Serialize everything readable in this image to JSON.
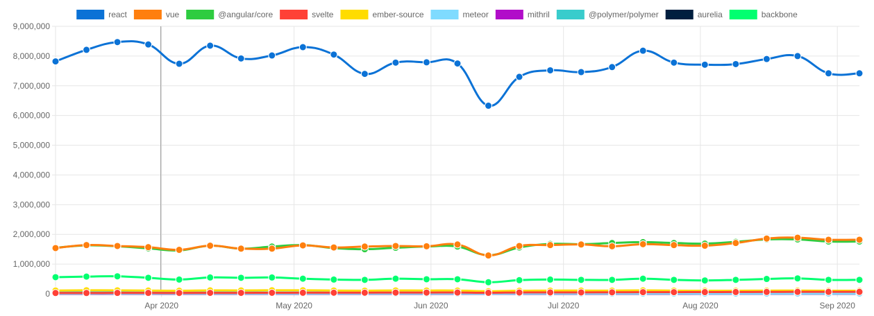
{
  "chart_data": {
    "type": "line",
    "title": "",
    "xlabel": "",
    "ylabel": "",
    "ylim": [
      0,
      9000000
    ],
    "y_ticks": [
      0,
      1000000,
      2000000,
      3000000,
      4000000,
      5000000,
      6000000,
      7000000,
      8000000,
      9000000
    ],
    "y_tick_labels": [
      "0",
      "1,000,000",
      "2,000,000",
      "3,000,000",
      "4,000,000",
      "5,000,000",
      "6,000,000",
      "7,000,000",
      "8,000,000",
      "9,000,000"
    ],
    "x": [
      "2020-03-08",
      "2020-03-15",
      "2020-03-22",
      "2020-03-29",
      "2020-04-05",
      "2020-04-12",
      "2020-04-19",
      "2020-04-26",
      "2020-05-03",
      "2020-05-10",
      "2020-05-17",
      "2020-05-24",
      "2020-05-31",
      "2020-06-07",
      "2020-06-14",
      "2020-06-21",
      "2020-06-28",
      "2020-07-05",
      "2020-07-12",
      "2020-07-19",
      "2020-07-26",
      "2020-08-02",
      "2020-08-09",
      "2020-08-16",
      "2020-08-23",
      "2020-08-30",
      "2020-09-06"
    ],
    "x_ticks": [
      {
        "label": "Apr 2020",
        "date": "2020-04-01"
      },
      {
        "label": "May 2020",
        "date": "2020-05-01"
      },
      {
        "label": "Jun 2020",
        "date": "2020-06-01"
      },
      {
        "label": "Jul 2020",
        "date": "2020-07-01"
      },
      {
        "label": "Aug 2020",
        "date": "2020-08-01"
      },
      {
        "label": "Sep 2020",
        "date": "2020-09-01"
      }
    ],
    "grid": true,
    "legend_position": "top",
    "series": [
      {
        "name": "react",
        "color": "#0b72d6",
        "values": [
          7820000,
          8210000,
          8470000,
          8390000,
          7740000,
          8350000,
          7920000,
          8020000,
          8300000,
          8050000,
          7400000,
          7780000,
          7790000,
          7750000,
          6330000,
          7300000,
          7520000,
          7460000,
          7630000,
          8180000,
          7780000,
          7710000,
          7730000,
          7900000,
          8000000,
          7420000,
          7420000
        ]
      },
      {
        "name": "vue",
        "color": "#ff7f0e",
        "values": [
          1540000,
          1640000,
          1610000,
          1570000,
          1480000,
          1620000,
          1520000,
          1520000,
          1630000,
          1560000,
          1590000,
          1610000,
          1600000,
          1660000,
          1290000,
          1610000,
          1640000,
          1660000,
          1600000,
          1670000,
          1640000,
          1620000,
          1710000,
          1860000,
          1890000,
          1820000,
          1820000
        ]
      },
      {
        "name": "@angular/core",
        "color": "#2ecc40",
        "values": [
          1550000,
          1630000,
          1600000,
          1530000,
          1460000,
          1620000,
          1520000,
          1590000,
          1640000,
          1540000,
          1500000,
          1550000,
          1590000,
          1590000,
          1300000,
          1560000,
          1680000,
          1670000,
          1710000,
          1740000,
          1710000,
          1690000,
          1750000,
          1830000,
          1830000,
          1760000,
          1760000
        ]
      },
      {
        "name": "svelte",
        "color": "#ff4136",
        "values": [
          28000,
          29000,
          31000,
          31000,
          30000,
          33000,
          33000,
          35000,
          37000,
          38000,
          38000,
          41000,
          42000,
          43000,
          34000,
          45000,
          48000,
          48000,
          50000,
          56000,
          56000,
          58000,
          60000,
          63000,
          66000,
          66000,
          66000
        ]
      },
      {
        "name": "ember-source",
        "color": "#ffdc00",
        "values": [
          112000,
          120000,
          118000,
          110000,
          104000,
          116000,
          115000,
          120000,
          119000,
          112000,
          106000,
          114000,
          112000,
          110000,
          88000,
          104000,
          108000,
          110000,
          108000,
          116000,
          108000,
          104000,
          106000,
          108000,
          110000,
          106000,
          106000
        ]
      },
      {
        "name": "meteor",
        "color": "#7fdbff",
        "values": [
          12000,
          13000,
          13000,
          12000,
          11000,
          12000,
          12000,
          12000,
          12000,
          12000,
          11000,
          11000,
          11000,
          11000,
          9000,
          11000,
          11000,
          11000,
          11000,
          11000,
          11000,
          10000,
          10000,
          10000,
          10000,
          10000,
          10000
        ]
      },
      {
        "name": "mithril",
        "color": "#b10dc9",
        "values": [
          7000,
          7000,
          7000,
          7000,
          6000,
          7000,
          7000,
          7000,
          7000,
          7000,
          6000,
          7000,
          7000,
          7000,
          5000,
          6000,
          7000,
          7000,
          7000,
          7000,
          7000,
          6000,
          6000,
          6000,
          6000,
          6000,
          6000
        ]
      },
      {
        "name": "@polymer/polymer",
        "color": "#39cccc",
        "values": [
          45000,
          46000,
          46000,
          44000,
          42000,
          44000,
          43000,
          44000,
          44000,
          42000,
          40000,
          42000,
          42000,
          41000,
          34000,
          40000,
          41000,
          40000,
          40000,
          41000,
          40000,
          39000,
          39000,
          40000,
          40000,
          39000,
          39000
        ]
      },
      {
        "name": "aurelia",
        "color": "#001f3f",
        "values": [
          4000,
          4000,
          4000,
          4000,
          3000,
          4000,
          4000,
          4000,
          4000,
          4000,
          3000,
          4000,
          4000,
          4000,
          3000,
          3000,
          4000,
          4000,
          4000,
          4000,
          4000,
          3000,
          3000,
          3000,
          3000,
          3000,
          3000
        ]
      },
      {
        "name": "backbone",
        "color": "#01ff70",
        "values": [
          560000,
          580000,
          590000,
          540000,
          480000,
          550000,
          540000,
          550000,
          510000,
          480000,
          470000,
          510000,
          490000,
          490000,
          390000,
          460000,
          480000,
          470000,
          470000,
          510000,
          470000,
          450000,
          470000,
          500000,
          520000,
          470000,
          470000
        ]
      }
    ]
  }
}
